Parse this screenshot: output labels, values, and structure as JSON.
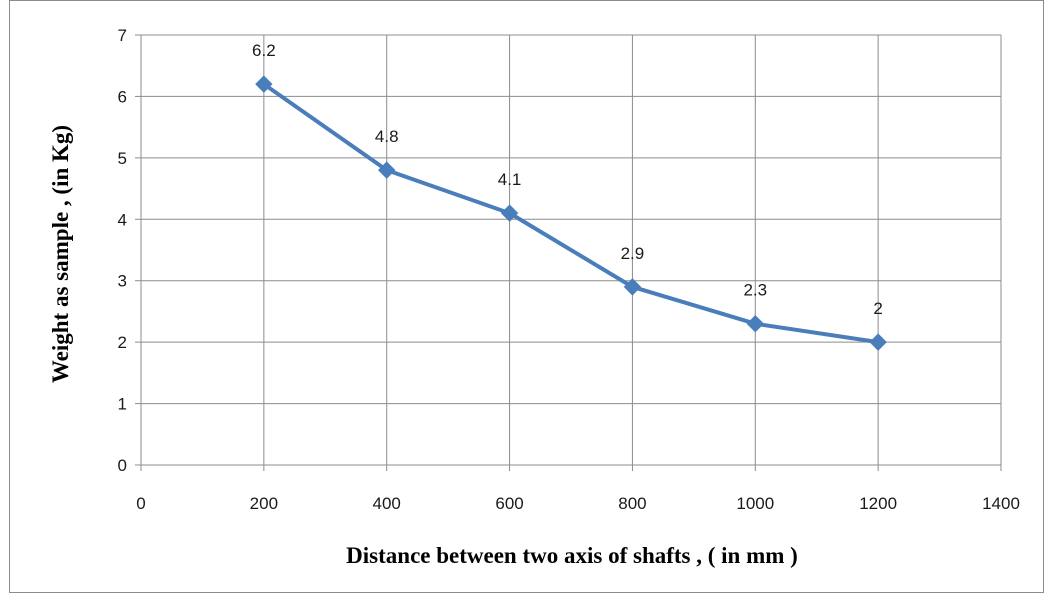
{
  "chart_data": {
    "type": "line",
    "title": "",
    "xlabel": "Distance between two axis of  shafts , ( in mm )",
    "ylabel": "Weight as sample , (in Kg)",
    "xlim": [
      0,
      1400
    ],
    "ylim": [
      0,
      7
    ],
    "x_ticks": [
      0,
      200,
      400,
      600,
      800,
      1000,
      1200,
      1400
    ],
    "y_ticks": [
      0,
      1,
      2,
      3,
      4,
      5,
      6,
      7
    ],
    "grid": true,
    "legend": "none",
    "series": [
      {
        "x": [
          200,
          400,
          600,
          800,
          1000,
          1200
        ],
        "y": [
          6.2,
          4.8,
          4.1,
          2.9,
          2.3,
          2
        ],
        "data_labels": [
          "6.2",
          "4.8",
          "4.1",
          "2.9",
          "2.3",
          "2"
        ],
        "color": "#4a7ebb",
        "marker": "diamond"
      }
    ]
  }
}
